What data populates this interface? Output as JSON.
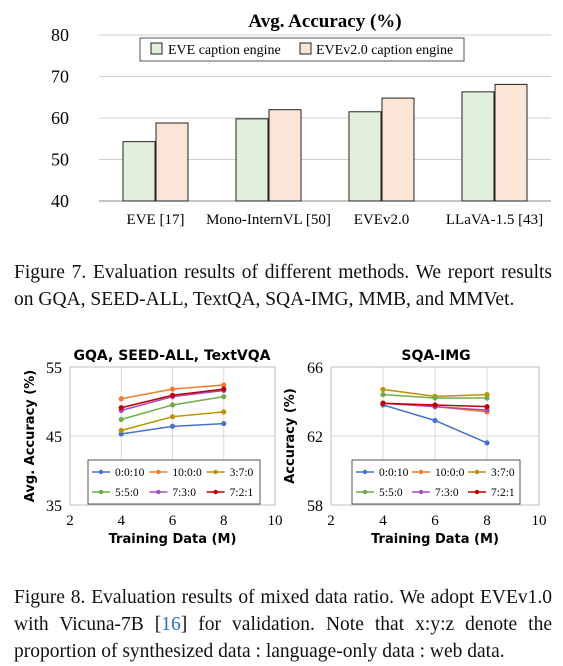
{
  "figure7": {
    "caption_prefix": "Figure 7.",
    "caption_text": "Evaluation results of different methods. We report results on GQA, SEED-ALL, TextQA, SQA-IMG, MMB, and MMVet."
  },
  "figure8": {
    "caption_prefix": "Figure 8.",
    "caption_text_1": "Evaluation results of mixed data ratio. We adopt EVEv1.0 with Vicuna-7B [",
    "caption_ref": "16",
    "caption_text_2": "] for validation. Note that x:y:z denote the proportion of synthesized data : language-only data : web data."
  },
  "colors": {
    "bar_series_1": "#e2efda",
    "bar_series_2": "#fbe5d6",
    "line_palette": [
      "#4472c4",
      "#ed7d31",
      "#bf9000",
      "#70ad47",
      "#a64bc0",
      "#c00000"
    ]
  },
  "chart_data": [
    {
      "type": "bar",
      "title": "Avg. Accuracy (%)",
      "categories": [
        "EVE [17]",
        "Mono-InternVL [50]",
        "EVEv2.0",
        "LLaVA-1.5 [43]"
      ],
      "series": [
        {
          "name": "EVE caption engine",
          "values": [
            54.3,
            59.8,
            61.5,
            66.3
          ]
        },
        {
          "name": "EVEv2.0 caption engine",
          "values": [
            58.8,
            62.0,
            64.8,
            68.1
          ]
        }
      ],
      "xlabel": "",
      "ylabel": "",
      "ylim": [
        40,
        80
      ],
      "yticks": [
        40,
        50,
        60,
        70,
        80
      ],
      "grid": true,
      "legend": "top"
    },
    {
      "type": "line",
      "title": "GQA, SEED-ALL, TextVQA",
      "xlabel": "Training Data (M)",
      "ylabel": "Avg. Accuracy (%)",
      "xlim": [
        2,
        10
      ],
      "xticks": [
        2,
        4,
        6,
        8,
        10
      ],
      "ylim": [
        35,
        55
      ],
      "yticks": [
        35,
        45,
        55
      ],
      "x": [
        4,
        6,
        8
      ],
      "series": [
        {
          "name": "0:0:10",
          "values": [
            45.3,
            46.4,
            46.8
          ]
        },
        {
          "name": "10:0:0",
          "values": [
            50.4,
            51.8,
            52.4
          ]
        },
        {
          "name": "3:7:0",
          "values": [
            45.8,
            47.8,
            48.5
          ]
        },
        {
          "name": "5:5:0",
          "values": [
            47.4,
            49.5,
            50.7
          ]
        },
        {
          "name": "7:3:0",
          "values": [
            48.7,
            50.7,
            51.6
          ]
        },
        {
          "name": "7:2:1",
          "values": [
            49.1,
            50.9,
            51.8
          ]
        }
      ],
      "grid": true,
      "legend": "bottom"
    },
    {
      "type": "line",
      "title": "SQA-IMG",
      "xlabel": "Training Data (M)",
      "ylabel": "Accuracy (%)",
      "xlim": [
        2,
        10
      ],
      "xticks": [
        2,
        4,
        6,
        8,
        10
      ],
      "ylim": [
        58,
        66
      ],
      "yticks": [
        58,
        62,
        66
      ],
      "x": [
        4,
        6,
        8
      ],
      "series": [
        {
          "name": "0:0:10",
          "values": [
            63.8,
            62.9,
            61.6
          ]
        },
        {
          "name": "10:0:0",
          "values": [
            63.9,
            63.7,
            63.4
          ]
        },
        {
          "name": "3:7:0",
          "values": [
            64.7,
            64.3,
            64.4
          ]
        },
        {
          "name": "5:5:0",
          "values": [
            64.4,
            64.2,
            64.2
          ]
        },
        {
          "name": "7:3:0",
          "values": [
            63.9,
            63.7,
            63.5
          ]
        },
        {
          "name": "7:2:1",
          "values": [
            63.9,
            63.8,
            63.7
          ]
        }
      ],
      "grid": true,
      "legend": "bottom"
    }
  ]
}
